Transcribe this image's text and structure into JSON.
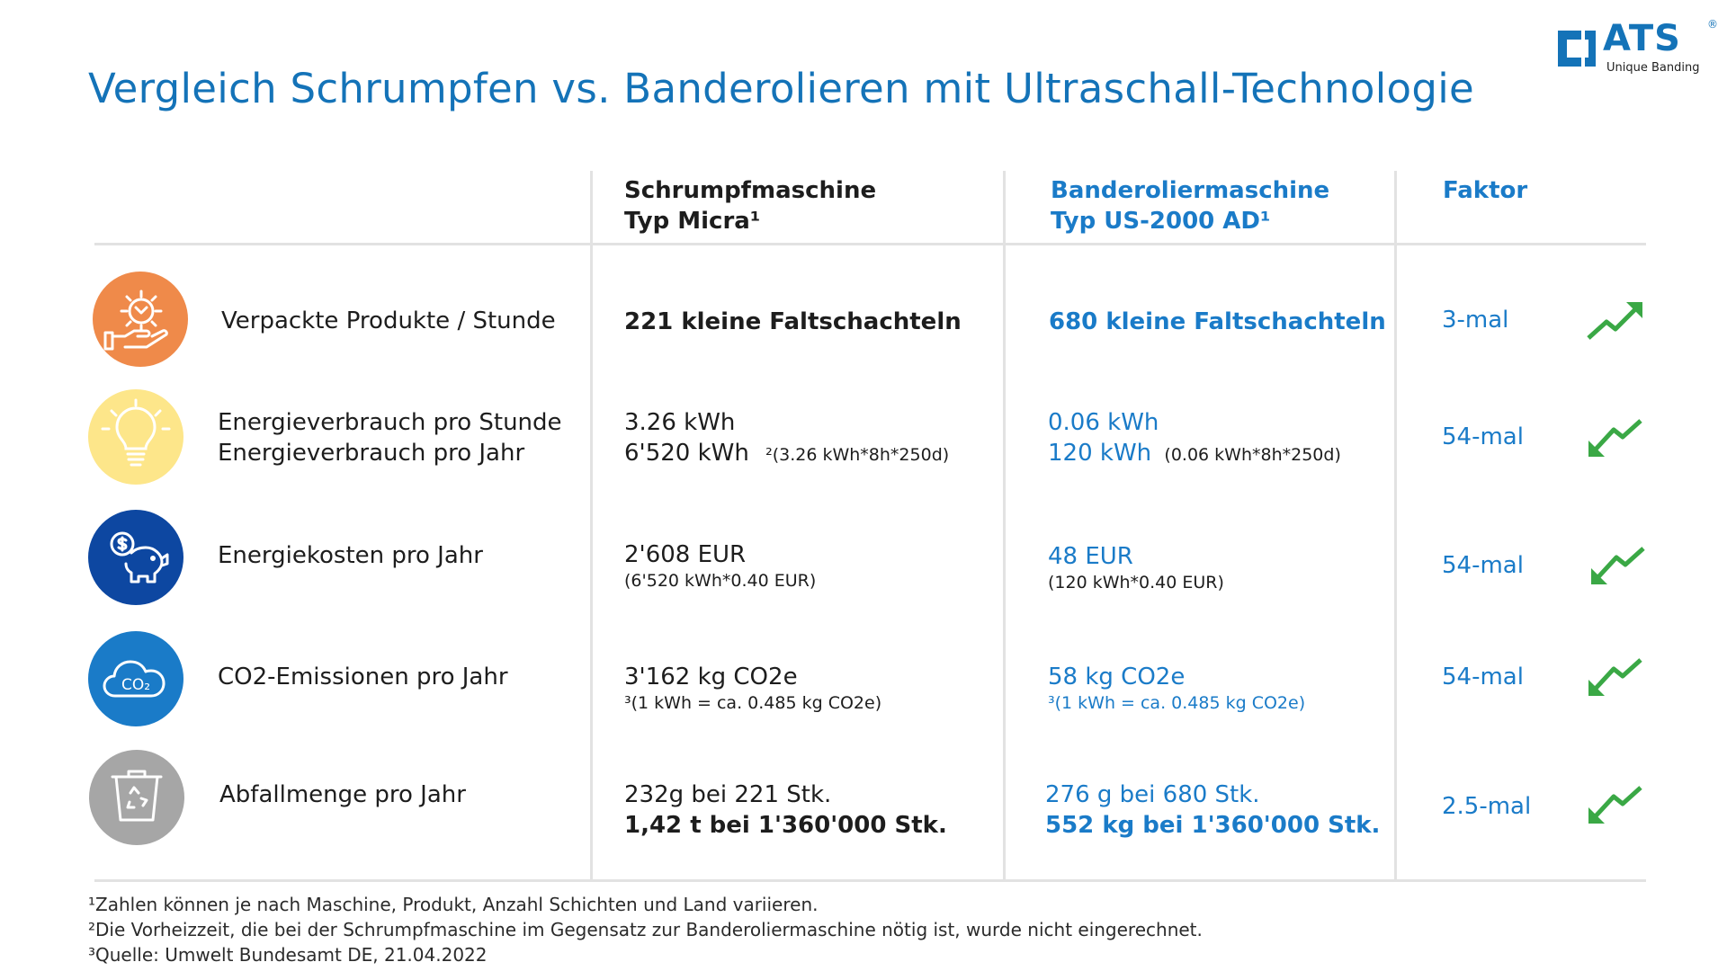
{
  "title": "Vergleich Schrumpfen vs. Banderolieren mit Ultraschall-Technologie",
  "logo": {
    "word": "ATS",
    "registered": "®",
    "tagline": "Unique Banding"
  },
  "colors": {
    "brand_blue": "#1473b8",
    "value_blue": "#1a7bc8",
    "orange": "#ef8a4a",
    "yellow": "#fde68a",
    "dark_blue": "#0d47a1",
    "mid_blue": "#1a7bc8",
    "gray": "#a6a6a6",
    "green": "#3aa845"
  },
  "header": {
    "col1_line1": "Schrumpfmaschine",
    "col1_line2": "Typ Micra¹",
    "col2_line1": "Banderoliermaschine",
    "col2_line2": "Typ US-2000 AD¹",
    "col3": "Faktor"
  },
  "rows": [
    {
      "icon": "gear-hand-icon",
      "label1": "Verpackte Produkte / Stunde",
      "v1_line1": "221 kleine Faltschachteln",
      "v2_line1": "680 kleine Faltschachteln",
      "factor": "3-mal",
      "trend": "trend-up-icon"
    },
    {
      "icon": "lightbulb-icon",
      "label1": "Energieverbrauch pro Stunde",
      "label2": "Energieverbrauch pro Jahr",
      "v1_line1": "3.26 kWh",
      "v1_line2": "6'520 kWh",
      "v1_note": "²(3.26 kWh*8h*250d)",
      "v2_line1": "0.06 kWh",
      "v2_line2": "120 kWh",
      "v2_note": "(0.06 kWh*8h*250d)",
      "factor": "54-mal",
      "trend": "trend-down-icon"
    },
    {
      "icon": "piggy-bank-icon",
      "label1": "Energiekosten pro Jahr",
      "v1_line1": "2'608 EUR",
      "v1_note": "(6'520 kWh*0.40 EUR)",
      "v2_line1": "48 EUR",
      "v2_note": "(120 kWh*0.40 EUR)",
      "factor": "54-mal",
      "trend": "trend-down-icon"
    },
    {
      "icon": "co2-cloud-icon",
      "icon_text": "CO₂",
      "label1": "CO2-Emissionen pro Jahr",
      "v1_line1": "3'162 kg CO2e",
      "v1_note": "³(1 kWh = ca. 0.485 kg CO2e)",
      "v2_line1": "58 kg CO2e",
      "v2_note": "³(1 kWh = ca. 0.485 kg CO2e)",
      "factor": "54-mal",
      "trend": "trend-down-icon"
    },
    {
      "icon": "recycle-bin-icon",
      "label1": "Abfallmenge pro Jahr",
      "v1_line1": "232g bei 221 Stk.",
      "v1_line2": "1,42 t bei 1'360'000 Stk.",
      "v2_line1": "276 g bei 680 Stk.",
      "v2_line2": "552 kg bei 1'360'000 Stk.",
      "factor": "2.5-mal",
      "trend": "trend-down-icon"
    }
  ],
  "footnotes": [
    "¹Zahlen können je nach Maschine, Produkt, Anzahl Schichten und Land variieren.",
    "²Die Vorheizzeit, die bei der Schrumpfmaschine im Gegensatz zur Banderoliermaschine nötig ist, wurde nicht eingerechnet.",
    "³Quelle: Umwelt Bundesamt DE, 21.04.2022"
  ]
}
